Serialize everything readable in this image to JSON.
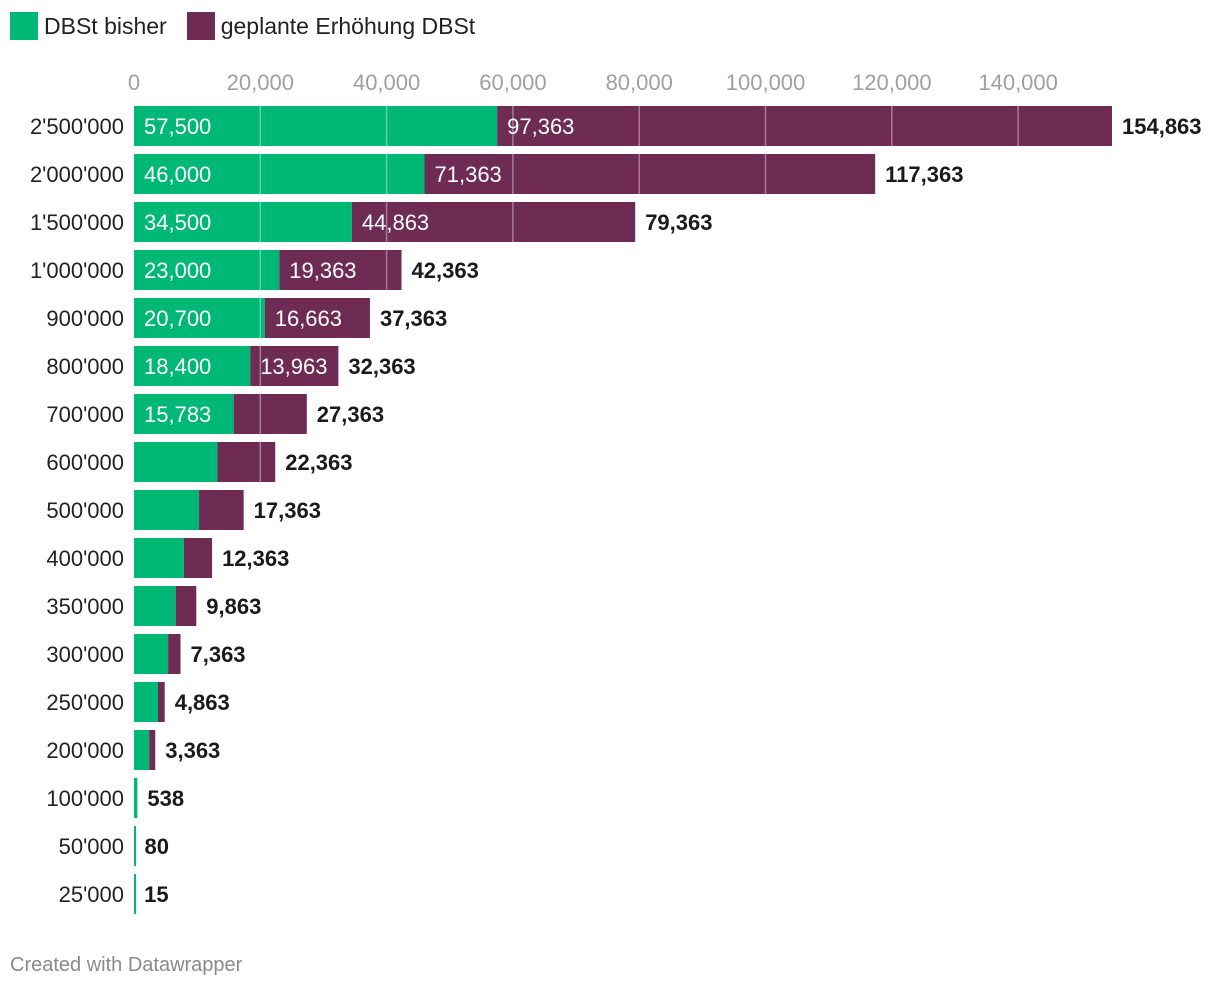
{
  "legend": {
    "items": [
      {
        "label": "DBSt bisher",
        "color": "#00b875"
      },
      {
        "label": "geplante Erhöhung DBSt",
        "color": "#6e2c55"
      }
    ]
  },
  "footer": {
    "credit": "Created with Datawrapper"
  },
  "chart_data": {
    "type": "bar",
    "orientation": "horizontal",
    "stacked": true,
    "title": "",
    "xlabel": "",
    "ylabel": "",
    "xlim": [
      0,
      154863
    ],
    "x_ticks": [
      0,
      20000,
      40000,
      60000,
      80000,
      100000,
      120000,
      140000
    ],
    "x_tick_labels": [
      "0",
      "20,000",
      "40,000",
      "60,000",
      "80,000",
      "100,000",
      "120,000",
      "140,000"
    ],
    "grid": true,
    "categories": [
      "2'500'000",
      "2'000'000",
      "1'500'000",
      "1'000'000",
      "900'000",
      "800'000",
      "700'000",
      "600'000",
      "500'000",
      "400'000",
      "350'000",
      "300'000",
      "250'000",
      "200'000",
      "100'000",
      "50'000",
      "25'000"
    ],
    "series": [
      {
        "name": "DBSt bisher",
        "color": "#00b875",
        "values": [
          57500,
          46000,
          34500,
          23000,
          20700,
          18400,
          15783,
          13200,
          10300,
          7900,
          6600,
          5400,
          3800,
          2400,
          538,
          80,
          15
        ],
        "labels": [
          "57,500",
          "46,000",
          "34,500",
          "23,000",
          "20,700",
          "18,400",
          "15,783",
          "",
          "",
          "",
          "",
          "",
          "",
          "",
          "",
          "",
          ""
        ]
      },
      {
        "name": "geplante Erhöhung DBSt",
        "color": "#6e2c55",
        "values": [
          97363,
          71363,
          44863,
          19363,
          16663,
          13963,
          11580,
          9163,
          7063,
          4463,
          3263,
          1963,
          1063,
          963,
          0,
          0,
          0
        ],
        "labels": [
          "97,363",
          "71,363",
          "44,863",
          "19,363",
          "16,663",
          "13,963",
          "",
          "",
          "",
          "",
          "",
          "",
          "",
          "",
          "",
          "",
          ""
        ]
      }
    ],
    "totals": [
      154863,
      117363,
      79363,
      42363,
      37363,
      32363,
      27363,
      22363,
      17363,
      12363,
      9863,
      7363,
      4863,
      3363,
      538,
      80,
      15
    ],
    "total_labels": [
      "154,863",
      "117,363",
      "79,363",
      "42,363",
      "37,363",
      "32,363",
      "27,363",
      "22,363",
      "17,363",
      "12,363",
      "9,863",
      "7,363",
      "4,863",
      "3,363",
      "538",
      "80",
      "15"
    ]
  }
}
